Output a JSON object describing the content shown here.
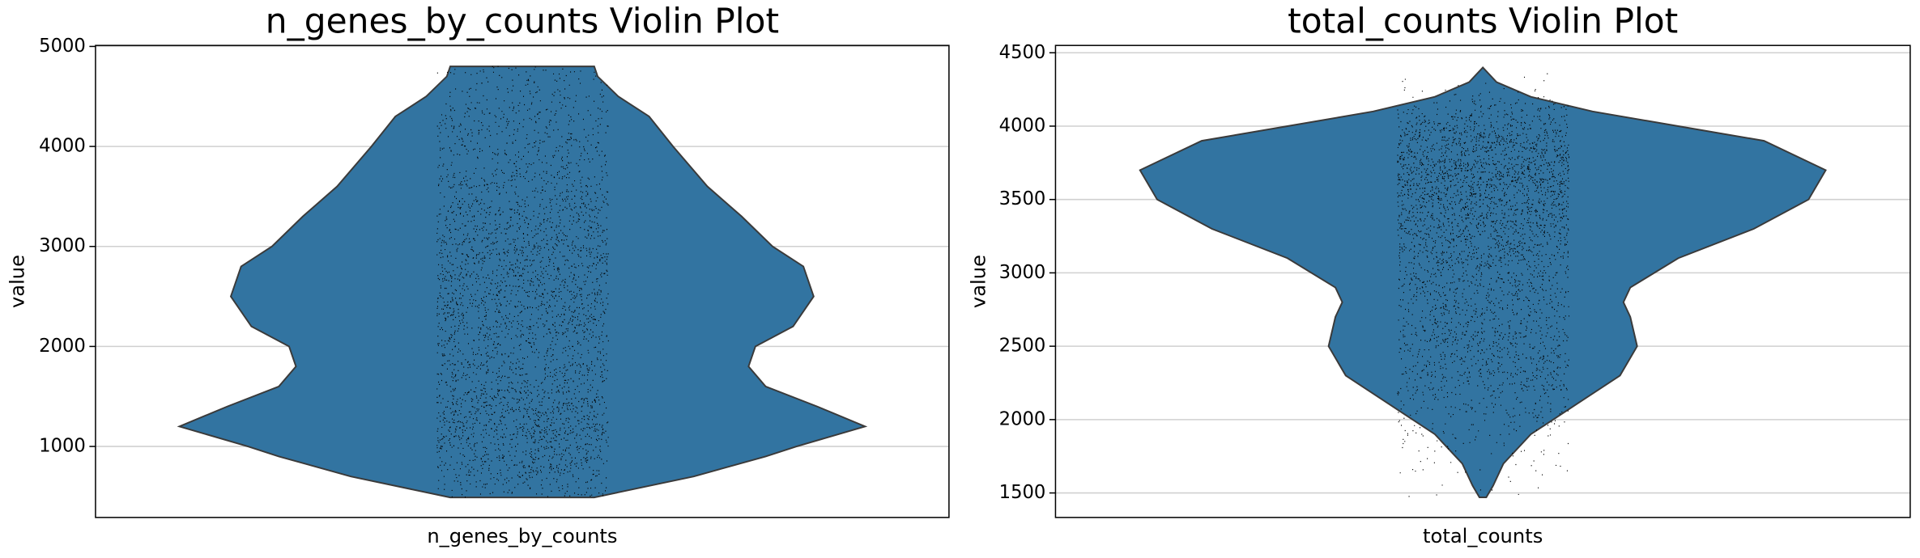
{
  "chart_data": [
    {
      "type": "violin",
      "title": "n_genes_by_counts Violin Plot",
      "ylabel": "value",
      "category": "n_genes_by_counts",
      "color": "#3274a1",
      "ylim": [
        290,
        5010
      ],
      "yticks": [
        1000,
        2000,
        3000,
        4000,
        5000
      ],
      "grid": true,
      "density": {
        "y": [
          490,
          700,
          900,
          1000,
          1200,
          1400,
          1600,
          1800,
          1900,
          2000,
          2200,
          2500,
          2800,
          3000,
          3300,
          3600,
          4000,
          4300,
          4500,
          4700,
          4800
        ],
        "width": [
          21,
          50,
          71,
          80,
          100,
          86,
          71,
          66,
          67,
          68,
          79,
          85,
          82,
          73,
          64,
          54,
          44,
          37,
          28,
          22,
          21
        ]
      }
    },
    {
      "type": "violin",
      "title": "total_counts Violin Plot",
      "ylabel": "value",
      "category": "total_counts",
      "color": "#3274a1",
      "ylim": [
        1333,
        4550
      ],
      "yticks": [
        1500,
        2000,
        2500,
        3000,
        3500,
        4000,
        4500
      ],
      "grid": true,
      "density": {
        "y": [
          1470,
          1550,
          1700,
          1900,
          2100,
          2300,
          2500,
          2700,
          2800,
          2900,
          3100,
          3300,
          3500,
          3700,
          3900,
          4000,
          4100,
          4200,
          4300,
          4400
        ],
        "width": [
          1,
          3,
          6,
          14,
          27,
          40,
          45,
          43,
          41,
          43,
          57,
          79,
          95,
          100,
          82,
          57,
          32,
          14,
          4,
          0
        ]
      }
    }
  ]
}
